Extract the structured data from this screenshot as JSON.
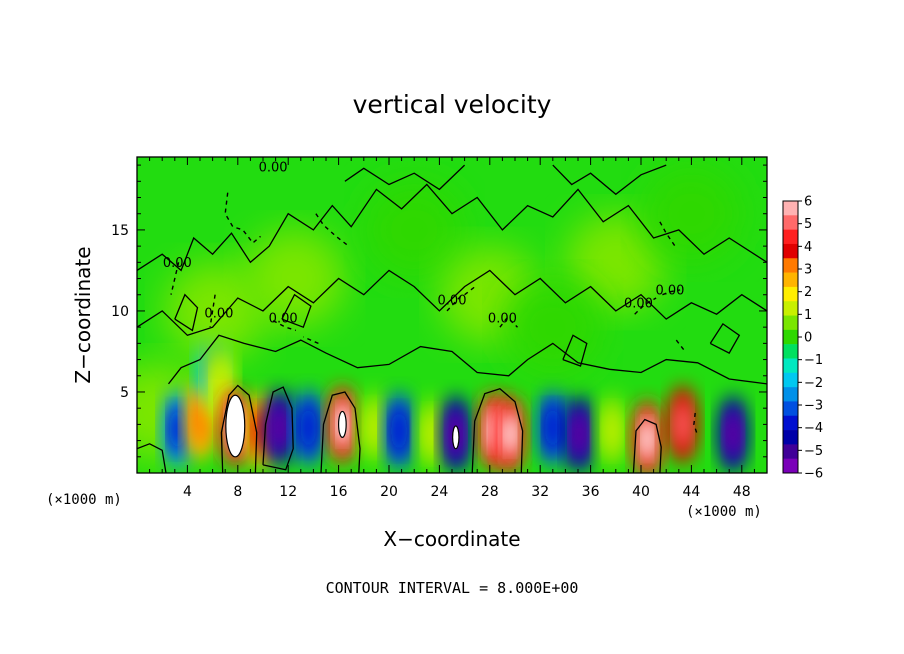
{
  "chart_data": {
    "type": "heatmap",
    "title": "vertical velocity",
    "xlabel": "X−coordinate",
    "ylabel": "Z−coordinate",
    "x_unit_label": "(×1000 m)",
    "xlim": [
      0,
      50
    ],
    "ylim": [
      0,
      19.5
    ],
    "x_ticks": [
      4,
      8,
      12,
      16,
      20,
      24,
      28,
      32,
      36,
      40,
      44,
      48
    ],
    "y_ticks": [
      5,
      10,
      15
    ],
    "contour_label": "0.00",
    "footer": "CONTOUR INTERVAL = 8.000E+00",
    "colorbar": {
      "range": [
        -6,
        6
      ],
      "tick_labels": [
        "6",
        "5",
        "4",
        "3",
        "2",
        "1",
        "0",
        "−1",
        "−2",
        "−3",
        "−4",
        "−5",
        "−6"
      ],
      "colors": [
        "#ffb2b2",
        "#ff6a6a",
        "#ff2020",
        "#e00000",
        "#ff7a00",
        "#ffb400",
        "#ffee00",
        "#c8f000",
        "#7ae600",
        "#2ed800",
        "#00e060",
        "#00e8c0",
        "#00c8f0",
        "#0090e8",
        "#0050e0",
        "#0010d0",
        "#0000a8",
        "#400098",
        "#7a00b8"
      ]
    },
    "cells": [
      {
        "x": 1.5,
        "z": 3.8,
        "w": 0.6
      },
      {
        "x": 3.2,
        "z": 2.7,
        "w": -3.5
      },
      {
        "x": 5.0,
        "z": 3.2,
        "w": 3.0
      },
      {
        "x": 5.9,
        "z": 6.8,
        "w": -2.5
      },
      {
        "x": 6.6,
        "z": 5.5,
        "w": 1.5
      },
      {
        "x": 7.8,
        "z": 2.8,
        "w": 6.0
      },
      {
        "x": 9.9,
        "z": 2.6,
        "w": 3.5
      },
      {
        "x": 11.3,
        "z": 2.8,
        "w": -6.0
      },
      {
        "x": 13.6,
        "z": 2.8,
        "w": -4.0
      },
      {
        "x": 16.3,
        "z": 3.0,
        "w": 6.0
      },
      {
        "x": 18.8,
        "z": 2.8,
        "w": 1.0
      },
      {
        "x": 20.8,
        "z": 2.6,
        "w": -4.0
      },
      {
        "x": 23.4,
        "z": 2.4,
        "w": 1.0
      },
      {
        "x": 25.3,
        "z": 2.4,
        "w": -6.0
      },
      {
        "x": 28.3,
        "z": 2.6,
        "w": 6.0
      },
      {
        "x": 29.6,
        "z": 2.4,
        "w": 6.0
      },
      {
        "x": 33.0,
        "z": 2.8,
        "w": -4.0
      },
      {
        "x": 35.1,
        "z": 2.4,
        "w": -6.0
      },
      {
        "x": 37.7,
        "z": 2.6,
        "w": 1.0
      },
      {
        "x": 40.5,
        "z": 2.1,
        "w": 6.0
      },
      {
        "x": 43.3,
        "z": 3.0,
        "w": 5.0
      },
      {
        "x": 47.3,
        "z": 2.4,
        "w": -6.0
      },
      {
        "x": 6.2,
        "z": 10.0,
        "w": 0.5
      },
      {
        "x": 12.5,
        "z": 12.0,
        "w": 0.4
      },
      {
        "x": 22.0,
        "z": 15.0,
        "w": 0.3
      },
      {
        "x": 28.0,
        "z": 11.0,
        "w": 0.5
      },
      {
        "x": 38.0,
        "z": 13.0,
        "w": 0.4
      },
      {
        "x": 44.0,
        "z": 16.0,
        "w": 0.3
      },
      {
        "x": 33.0,
        "z": 9.0,
        "w": -0.3
      }
    ],
    "contours": [
      {
        "points": [
          [
            6.8,
            0
          ],
          [
            6.7,
            2.5
          ],
          [
            7.3,
            4.8
          ],
          [
            8.0,
            5.4
          ],
          [
            8.9,
            4.8
          ],
          [
            9.5,
            2.5
          ],
          [
            9.4,
            0
          ]
        ]
      },
      {
        "points": [
          [
            10.0,
            0.5
          ],
          [
            10.2,
            3.0
          ],
          [
            10.8,
            5.0
          ],
          [
            11.6,
            5.3
          ],
          [
            12.3,
            4.0
          ],
          [
            12.4,
            1.5
          ],
          [
            11.8,
            0.2
          ],
          [
            10.0,
            0.5
          ]
        ]
      },
      {
        "points": [
          [
            14.6,
            0
          ],
          [
            14.8,
            3.0
          ],
          [
            15.5,
            4.8
          ],
          [
            16.5,
            5.0
          ],
          [
            17.3,
            4.0
          ],
          [
            17.7,
            1.5
          ],
          [
            17.6,
            0
          ]
        ]
      },
      {
        "points": [
          [
            26.6,
            0
          ],
          [
            26.8,
            3.2
          ],
          [
            27.6,
            4.9
          ],
          [
            28.8,
            5.2
          ],
          [
            30.0,
            4.4
          ],
          [
            30.6,
            2.6
          ],
          [
            30.5,
            0
          ]
        ]
      },
      {
        "points": [
          [
            39.4,
            0
          ],
          [
            39.6,
            2.6
          ],
          [
            40.3,
            3.3
          ],
          [
            41.2,
            3.0
          ],
          [
            41.6,
            1.6
          ],
          [
            41.5,
            0
          ]
        ]
      },
      {
        "points": [
          [
            0,
            1.5
          ],
          [
            1.0,
            1.8
          ],
          [
            2.0,
            1.4
          ],
          [
            2.3,
            0
          ]
        ]
      },
      {
        "points": [
          [
            2.5,
            5.5
          ],
          [
            3.5,
            6.5
          ],
          [
            5.0,
            7.0
          ],
          [
            6.5,
            8.5
          ],
          [
            8.5,
            8.0
          ],
          [
            11.0,
            7.5
          ],
          [
            13.0,
            8.2
          ],
          [
            15.0,
            7.4
          ],
          [
            17.5,
            6.5
          ],
          [
            20.0,
            6.7
          ],
          [
            22.5,
            7.8
          ],
          [
            25.0,
            7.5
          ],
          [
            27.0,
            6.2
          ],
          [
            29.5,
            6.0
          ],
          [
            31.0,
            7.0
          ],
          [
            33.0,
            8.0
          ],
          [
            35.0,
            6.8
          ],
          [
            37.5,
            6.4
          ],
          [
            40.0,
            6.2
          ],
          [
            42.0,
            7.0
          ],
          [
            44.5,
            6.8
          ],
          [
            47.0,
            5.8
          ],
          [
            50.0,
            5.5
          ]
        ]
      },
      {
        "points": [
          [
            0,
            12.5
          ],
          [
            2.0,
            13.5
          ],
          [
            3.5,
            12.5
          ],
          [
            4.5,
            14.5
          ],
          [
            6.0,
            13.5
          ],
          [
            7.5,
            14.8
          ],
          [
            9.0,
            13.0
          ],
          [
            10.5,
            14.0
          ],
          [
            12.0,
            16.0
          ],
          [
            14.0,
            15.0
          ],
          [
            15.5,
            16.5
          ],
          [
            17.0,
            15.2
          ],
          [
            19.0,
            17.5
          ],
          [
            21.0,
            16.3
          ],
          [
            23.0,
            17.8
          ],
          [
            25.0,
            16.0
          ],
          [
            27.0,
            17.0
          ],
          [
            29.0,
            15.0
          ],
          [
            31.0,
            16.5
          ],
          [
            33.0,
            15.8
          ],
          [
            35.0,
            17.5
          ],
          [
            37.0,
            15.5
          ],
          [
            39.0,
            16.5
          ],
          [
            41.0,
            14.5
          ],
          [
            43.0,
            15.0
          ],
          [
            45.0,
            13.5
          ],
          [
            47.0,
            14.5
          ],
          [
            50.0,
            13.0
          ]
        ]
      },
      {
        "points": [
          [
            0,
            9.0
          ],
          [
            2.0,
            10.0
          ],
          [
            4.0,
            8.5
          ],
          [
            6.0,
            9.0
          ],
          [
            8.0,
            10.8
          ],
          [
            10.0,
            10.0
          ],
          [
            12.0,
            11.5
          ],
          [
            14.0,
            10.5
          ],
          [
            16.0,
            12.0
          ],
          [
            18.0,
            11.0
          ],
          [
            20.0,
            12.5
          ],
          [
            22.0,
            11.5
          ],
          [
            24.0,
            10.0
          ],
          [
            26.0,
            11.5
          ],
          [
            28.0,
            12.5
          ],
          [
            30.0,
            11.0
          ],
          [
            32.0,
            12.0
          ],
          [
            34.0,
            10.5
          ],
          [
            36.0,
            11.5
          ],
          [
            38.0,
            10.0
          ],
          [
            40.0,
            11.0
          ],
          [
            42.0,
            9.5
          ],
          [
            44.0,
            10.5
          ],
          [
            46.0,
            9.8
          ],
          [
            48.0,
            11.0
          ],
          [
            50.0,
            10.0
          ]
        ]
      },
      {
        "points": [
          [
            16.5,
            18.0
          ],
          [
            18.0,
            18.8
          ],
          [
            20.0,
            17.8
          ],
          [
            22.0,
            18.5
          ],
          [
            24.0,
            17.5
          ],
          [
            26.0,
            19.0
          ]
        ]
      },
      {
        "points": [
          [
            33.0,
            19.0
          ],
          [
            34.5,
            17.8
          ],
          [
            36.0,
            18.5
          ],
          [
            38.0,
            17.2
          ],
          [
            40.0,
            18.4
          ],
          [
            42.0,
            19.0
          ]
        ]
      },
      {
        "points": [
          [
            3.0,
            9.5
          ],
          [
            3.8,
            11.0
          ],
          [
            4.8,
            10.2
          ],
          [
            4.4,
            8.8
          ],
          [
            3.0,
            9.5
          ]
        ]
      },
      {
        "points": [
          [
            11.5,
            9.5
          ],
          [
            12.5,
            11.0
          ],
          [
            13.8,
            10.3
          ],
          [
            13.2,
            9.0
          ],
          [
            11.5,
            9.5
          ]
        ]
      },
      {
        "points": [
          [
            33.8,
            7.0
          ],
          [
            34.6,
            8.5
          ],
          [
            35.7,
            8.0
          ],
          [
            35.2,
            6.6
          ],
          [
            33.8,
            7.0
          ]
        ]
      },
      {
        "points": [
          [
            45.5,
            8.0
          ],
          [
            46.5,
            9.2
          ],
          [
            47.8,
            8.5
          ],
          [
            47.0,
            7.4
          ],
          [
            45.5,
            8.0
          ]
        ]
      }
    ],
    "inner_contours": [
      {
        "cx": 7.8,
        "cz": 2.9,
        "rx": 0.75,
        "rz": 1.9
      },
      {
        "cx": 16.3,
        "cz": 3.0,
        "rx": 0.3,
        "rz": 0.8
      },
      {
        "cx": 25.3,
        "cz": 2.2,
        "rx": 0.25,
        "rz": 0.7
      }
    ],
    "dotted_contours": [
      {
        "points": [
          [
            7.2,
            17.3
          ],
          [
            7.0,
            16.0
          ],
          [
            7.6,
            15.2
          ],
          [
            8.4,
            15.0
          ],
          [
            9.2,
            14.2
          ],
          [
            9.8,
            14.6
          ]
        ]
      },
      {
        "points": [
          [
            3.3,
            13.0
          ],
          [
            3.0,
            12.0
          ],
          [
            2.7,
            11.0
          ]
        ]
      },
      {
        "points": [
          [
            6.2,
            11.0
          ],
          [
            6.0,
            10.0
          ],
          [
            5.8,
            9.0
          ]
        ]
      },
      {
        "points": [
          [
            10.8,
            9.4
          ],
          [
            11.8,
            9.0
          ],
          [
            12.6,
            8.8
          ]
        ]
      },
      {
        "points": [
          [
            14.4,
            8.0
          ],
          [
            13.2,
            8.4
          ]
        ]
      },
      {
        "points": [
          [
            14.2,
            16.0
          ],
          [
            14.8,
            15.3
          ],
          [
            15.8,
            14.6
          ],
          [
            16.8,
            14.0
          ]
        ]
      },
      {
        "points": [
          [
            24.6,
            10.0
          ],
          [
            25.2,
            10.5
          ],
          [
            25.8,
            11.0
          ]
        ]
      },
      {
        "points": [
          [
            26.0,
            11.0
          ],
          [
            27.0,
            11.6
          ]
        ]
      },
      {
        "points": [
          [
            28.8,
            9.0
          ],
          [
            29.4,
            9.6
          ],
          [
            30.2,
            9.0
          ]
        ]
      },
      {
        "points": [
          [
            39.5,
            9.8
          ],
          [
            40.3,
            10.4
          ],
          [
            41.2,
            10.8
          ]
        ]
      },
      {
        "points": [
          [
            41.7,
            11.0
          ],
          [
            42.4,
            11.2
          ],
          [
            43.1,
            11.3
          ]
        ]
      },
      {
        "points": [
          [
            41.5,
            15.5
          ],
          [
            42.0,
            14.8
          ],
          [
            42.7,
            14.0
          ]
        ]
      },
      {
        "points": [
          [
            42.8,
            8.2
          ],
          [
            43.4,
            7.6
          ]
        ]
      },
      {
        "points": [
          [
            44.3,
            3.7
          ],
          [
            44.2,
            3.0
          ],
          [
            44.5,
            2.3
          ]
        ]
      }
    ],
    "contour_labels": [
      {
        "x": 10.8,
        "z": 18.6
      },
      {
        "x": 3.2,
        "z": 12.7
      },
      {
        "x": 6.5,
        "z": 9.6
      },
      {
        "x": 11.6,
        "z": 9.3
      },
      {
        "x": 25.0,
        "z": 10.4
      },
      {
        "x": 29.0,
        "z": 9.3
      },
      {
        "x": 39.8,
        "z": 10.2
      },
      {
        "x": 42.3,
        "z": 11.0
      }
    ]
  }
}
